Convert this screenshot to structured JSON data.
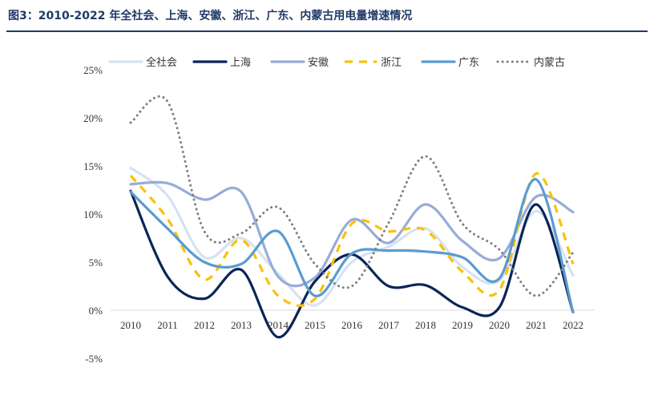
{
  "title": "图3：2010-2022 年全社会、上海、安徽、浙江、广东、内蒙古用电量增速情况",
  "chart_data": {
    "type": "line",
    "title": "",
    "xlabel": "",
    "ylabel": "",
    "categories": [
      "2010",
      "2011",
      "2012",
      "2013",
      "2014",
      "2015",
      "2016",
      "2017",
      "2018",
      "2019",
      "2020",
      "2021",
      "2022"
    ],
    "ylim": [
      -5,
      25
    ],
    "yticks": [
      -5,
      0,
      5,
      10,
      15,
      20,
      25
    ],
    "ytick_labels": [
      "-5%",
      "0%",
      "5%",
      "10%",
      "15%",
      "20%",
      "25%"
    ],
    "grid": false,
    "legend_position": "top",
    "series": [
      {
        "name": "全社会",
        "color": "#d6e2f2",
        "dash": "solid",
        "values": [
          14.8,
          11.9,
          5.5,
          7.5,
          3.8,
          0.5,
          5.0,
          6.6,
          8.5,
          4.5,
          3.1,
          10.3,
          3.6
        ]
      },
      {
        "name": "上海",
        "color": "#0b2559",
        "dash": "solid",
        "values": [
          12.4,
          3.5,
          1.2,
          4.2,
          -2.8,
          3.0,
          5.8,
          2.5,
          2.6,
          0.3,
          0.3,
          11.0,
          -0.2
        ]
      },
      {
        "name": "安徽",
        "color": "#97acd8",
        "dash": "solid",
        "values": [
          13.1,
          13.2,
          11.5,
          12.3,
          3.5,
          3.4,
          9.4,
          7.0,
          11.0,
          7.2,
          5.4,
          11.8,
          10.2
        ]
      },
      {
        "name": "浙江",
        "color": "#f7c20c",
        "dash": "dash",
        "values": [
          14.0,
          9.5,
          3.2,
          7.3,
          1.5,
          1.2,
          9.0,
          8.2,
          8.3,
          4.0,
          2.1,
          14.2,
          4.8
        ]
      },
      {
        "name": "广东",
        "color": "#5b9bd0",
        "dash": "solid",
        "values": [
          12.3,
          8.5,
          5.0,
          4.8,
          8.2,
          1.5,
          5.9,
          6.2,
          6.1,
          5.5,
          3.3,
          13.6,
          -0.2
        ]
      },
      {
        "name": "内蒙古",
        "color": "#7f7f7f",
        "dash": "dot",
        "values": [
          19.5,
          21.7,
          8.2,
          8.0,
          10.7,
          4.8,
          2.5,
          9.1,
          16.0,
          9.0,
          6.3,
          1.5,
          6.0
        ]
      }
    ]
  }
}
